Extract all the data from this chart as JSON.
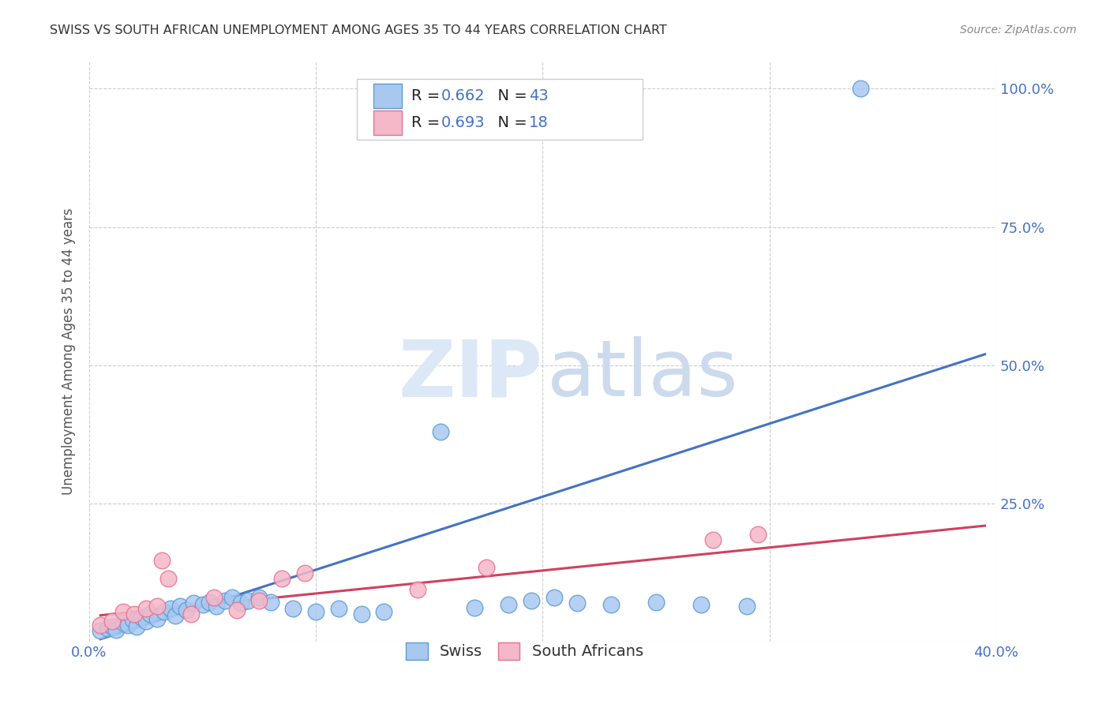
{
  "title": "SWISS VS SOUTH AFRICAN UNEMPLOYMENT AMONG AGES 35 TO 44 YEARS CORRELATION CHART",
  "source": "Source: ZipAtlas.com",
  "ylabel_text": "Unemployment Among Ages 35 to 44 years",
  "xlim": [
    0.0,
    0.4
  ],
  "ylim": [
    0.0,
    1.05
  ],
  "x_ticks": [
    0.0,
    0.1,
    0.2,
    0.3,
    0.4
  ],
  "x_tick_labels": [
    "0.0%",
    "",
    "",
    "",
    "40.0%"
  ],
  "y_ticks": [
    0.0,
    0.25,
    0.5,
    0.75,
    1.0
  ],
  "y_tick_labels": [
    "",
    "25.0%",
    "50.0%",
    "75.0%",
    "100.0%"
  ],
  "swiss_color": "#a8c8f0",
  "swiss_edge_color": "#5b9bd5",
  "sa_color": "#f5b8c8",
  "sa_edge_color": "#e87090",
  "trend_blue": "#4472c4",
  "trend_pink": "#d04060",
  "legend_R_swiss": "0.662",
  "legend_N_swiss": "43",
  "legend_R_sa": "0.693",
  "legend_N_sa": "18",
  "swiss_x": [
    0.005,
    0.008,
    0.01,
    0.012,
    0.015,
    0.017,
    0.019,
    0.021,
    0.023,
    0.025,
    0.027,
    0.03,
    0.033,
    0.036,
    0.038,
    0.04,
    0.043,
    0.046,
    0.05,
    0.053,
    0.056,
    0.06,
    0.063,
    0.067,
    0.07,
    0.075,
    0.08,
    0.09,
    0.1,
    0.11,
    0.12,
    0.13,
    0.155,
    0.17,
    0.185,
    0.195,
    0.205,
    0.215,
    0.23,
    0.25,
    0.27,
    0.29,
    0.34
  ],
  "swiss_y": [
    0.02,
    0.025,
    0.028,
    0.022,
    0.035,
    0.03,
    0.04,
    0.028,
    0.045,
    0.038,
    0.05,
    0.042,
    0.055,
    0.06,
    0.048,
    0.065,
    0.058,
    0.07,
    0.068,
    0.072,
    0.065,
    0.075,
    0.08,
    0.07,
    0.075,
    0.08,
    0.072,
    0.06,
    0.055,
    0.06,
    0.05,
    0.055,
    0.38,
    0.062,
    0.068,
    0.075,
    0.08,
    0.07,
    0.068,
    0.072,
    0.068,
    0.065,
    1.0
  ],
  "sa_x": [
    0.005,
    0.01,
    0.015,
    0.02,
    0.025,
    0.03,
    0.032,
    0.035,
    0.045,
    0.055,
    0.065,
    0.075,
    0.085,
    0.095,
    0.145,
    0.175,
    0.275,
    0.295
  ],
  "sa_y": [
    0.03,
    0.038,
    0.055,
    0.05,
    0.06,
    0.065,
    0.148,
    0.115,
    0.05,
    0.08,
    0.058,
    0.075,
    0.115,
    0.125,
    0.095,
    0.135,
    0.185,
    0.195
  ],
  "blue_trend_x": [
    0.005,
    0.395
  ],
  "blue_trend_y": [
    0.005,
    0.52
  ],
  "pink_trend_x": [
    0.005,
    0.395
  ],
  "pink_trend_y": [
    0.048,
    0.21
  ]
}
